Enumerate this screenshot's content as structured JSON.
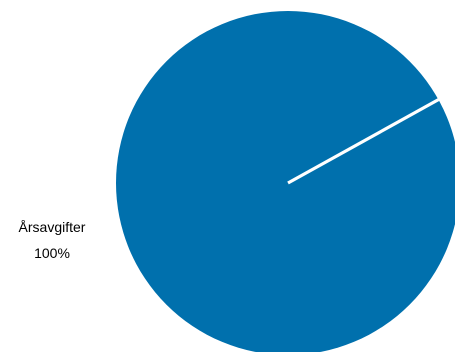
{
  "chart_data": {
    "type": "pie",
    "title": "",
    "slices": [
      {
        "name": "Årsavgifter",
        "value": 100,
        "label": "Årsavgifter",
        "percent_label": "100%",
        "color": "#0070ad"
      }
    ],
    "slice_separator_color": "#ffffff",
    "legend": "none"
  }
}
